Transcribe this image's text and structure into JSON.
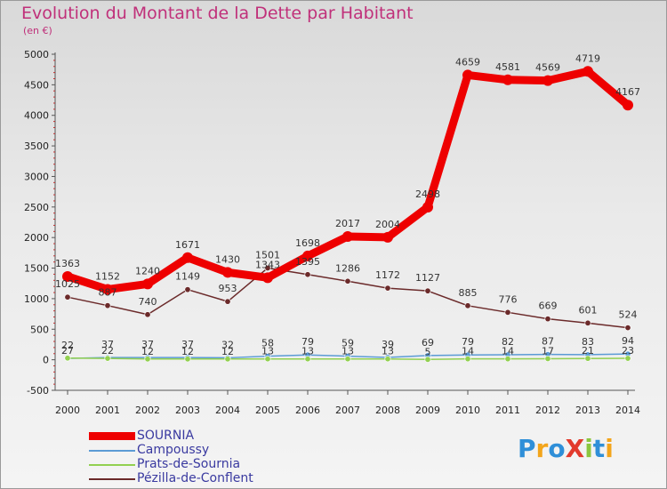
{
  "title": "Evolution du Montant de la Dette par Habitant",
  "subtitle": "(en €)",
  "logo": {
    "text": "ProXiti",
    "letters": [
      {
        "ch": "P",
        "color": "#2f8fd8"
      },
      {
        "ch": "r",
        "color": "#f3a51b"
      },
      {
        "ch": "o",
        "color": "#2f8fd8"
      },
      {
        "ch": "X",
        "color": "#e23a2c"
      },
      {
        "ch": "i",
        "color": "#8cc63f"
      },
      {
        "ch": "t",
        "color": "#2f8fd8"
      },
      {
        "ch": "i",
        "color": "#f3a51b"
      }
    ]
  },
  "chart_data": {
    "type": "line",
    "title": "Evolution du Montant de la Dette par Habitant",
    "ylabel": "(en €)",
    "x": [
      2000,
      2001,
      2002,
      2003,
      2004,
      2005,
      2006,
      2007,
      2008,
      2009,
      2010,
      2011,
      2012,
      2013,
      2014
    ],
    "ylim": [
      -500,
      5000
    ],
    "yticks": [
      -500,
      0,
      500,
      1000,
      1500,
      2000,
      2500,
      3000,
      3500,
      4000,
      4500,
      5000
    ],
    "grid": false,
    "legend_position": "bottom-left",
    "series": [
      {
        "name": "SOURNIA",
        "color": "#ee0000",
        "values": [
          1363,
          1152,
          1240,
          1671,
          1430,
          1343,
          1698,
          2017,
          2004,
          2498,
          4659,
          4581,
          4569,
          4719,
          4167
        ]
      },
      {
        "name": "Campoussy",
        "color": "#5b9bd5",
        "values": [
          22,
          37,
          37,
          37,
          32,
          58,
          79,
          59,
          39,
          69,
          79,
          82,
          87,
          83,
          94
        ]
      },
      {
        "name": "Prats-de-Sournia",
        "color": "#92d050",
        "values": [
          27,
          22,
          12,
          12,
          12,
          13,
          13,
          13,
          13,
          5,
          14,
          14,
          17,
          21,
          23
        ]
      },
      {
        "name": "Pézilla-de-Conflent",
        "color": "#6b2a2a",
        "values": [
          1025,
          887,
          740,
          1149,
          953,
          1501,
          1395,
          1286,
          1172,
          1127,
          885,
          776,
          669,
          601,
          524
        ]
      }
    ]
  }
}
